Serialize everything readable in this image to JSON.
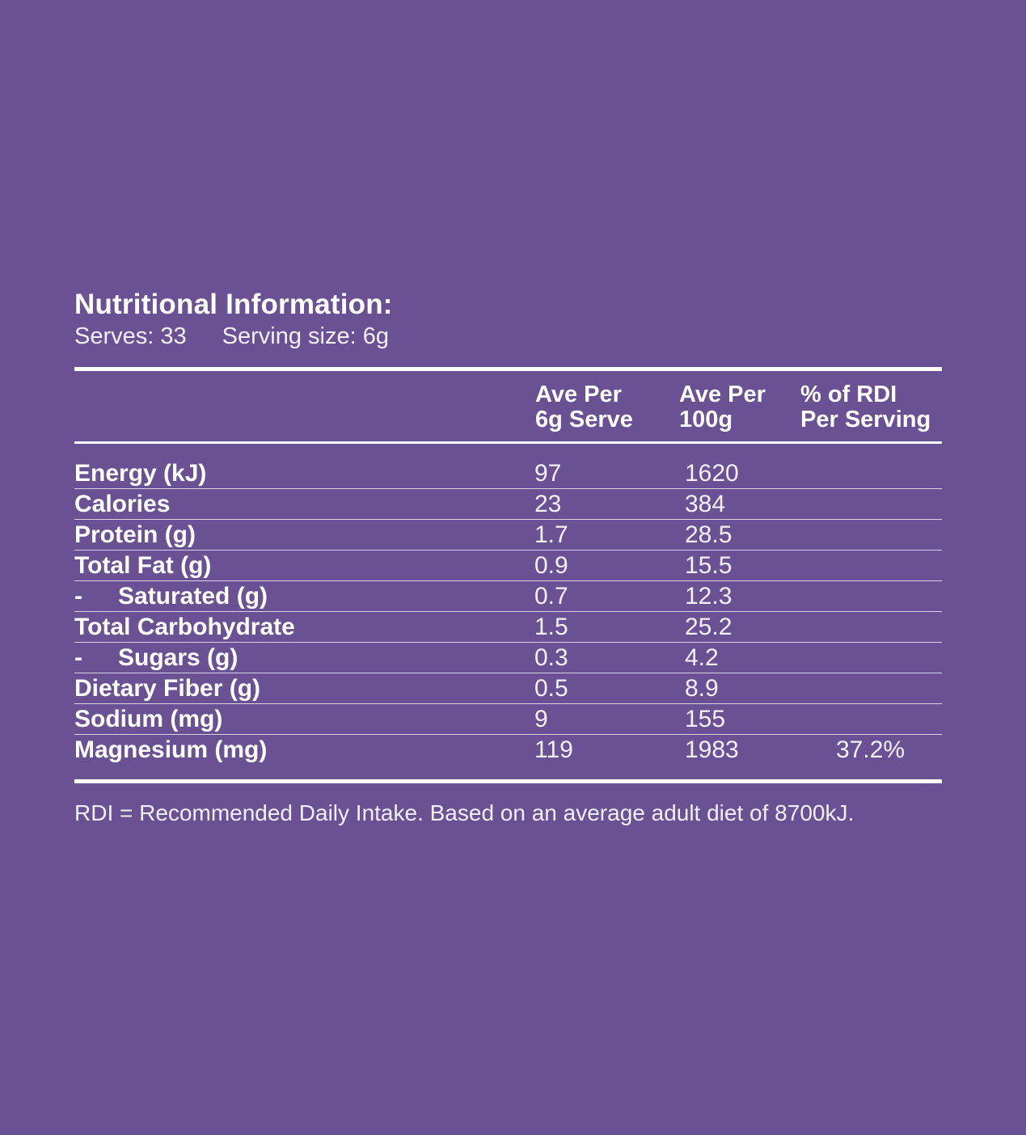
{
  "panel": {
    "title": "Nutritional Information:",
    "serves": "Serves: 33",
    "serving_size": "Serving size: 6g"
  },
  "table": {
    "headers": {
      "per_serve": [
        "Ave Per",
        "6g Serve"
      ],
      "per_100g": [
        "Ave Per",
        "100g"
      ],
      "rdi": [
        "% of RDI",
        "Per Serving"
      ]
    },
    "rows": [
      {
        "dash": "",
        "name": "Energy (kJ)",
        "per_serve": "97",
        "per_100g": "1620",
        "rdi": ""
      },
      {
        "dash": "",
        "name": "Calories",
        "per_serve": "23",
        "per_100g": "384",
        "rdi": ""
      },
      {
        "dash": "",
        "name": "Protein (g)",
        "per_serve": "1.7",
        "per_100g": "28.5",
        "rdi": ""
      },
      {
        "dash": "",
        "name": "Total Fat (g)",
        "per_serve": "0.9",
        "per_100g": "15.5",
        "rdi": ""
      },
      {
        "dash": "-",
        "name": "Saturated (g)",
        "per_serve": "0.7",
        "per_100g": "12.3",
        "rdi": ""
      },
      {
        "dash": "",
        "name": "Total Carbohydrate",
        "per_serve": "1.5",
        "per_100g": "25.2",
        "rdi": ""
      },
      {
        "dash": "-",
        "name": "Sugars (g)",
        "per_serve": "0.3",
        "per_100g": "4.2",
        "rdi": ""
      },
      {
        "dash": "",
        "name": "Dietary Fiber (g)",
        "per_serve": "0.5",
        "per_100g": "8.9",
        "rdi": ""
      },
      {
        "dash": "",
        "name": "Sodium (mg)",
        "per_serve": "9",
        "per_100g": "155",
        "rdi": ""
      },
      {
        "dash": "",
        "name": "Magnesium (mg)",
        "per_serve": "119",
        "per_100g": "1983",
        "rdi": "37.2%"
      }
    ]
  },
  "footnote": "RDI = Recommended Daily Intake. Based on an average adult diet of 8700kJ.",
  "colors": {
    "background": "#6a5193",
    "text": "#ffffff"
  }
}
